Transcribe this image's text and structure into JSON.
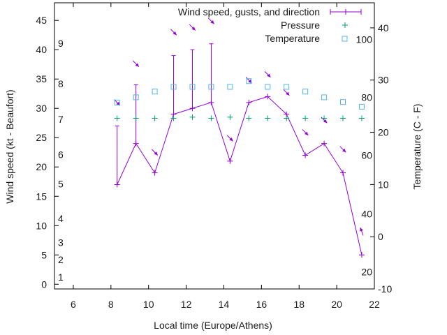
{
  "chart_data": {
    "type": "line",
    "title": "",
    "xlabel": "Local time (Europe/Athens)",
    "ylabel": "Wind speed (kt - Beaufort)",
    "y2label": "Temperature (C - F)",
    "xlim": [
      5,
      22
    ],
    "ylim": [
      -0.8,
      48
    ],
    "y2lim": [
      -10,
      44.8
    ],
    "grid": false,
    "legend_position": "top-right",
    "x_ticks": [
      "6",
      "8",
      "10",
      "12",
      "14",
      "16",
      "18",
      "20",
      "22"
    ],
    "y_ticks": [
      "0",
      "5",
      "10",
      "15",
      "20",
      "25",
      "30",
      "35",
      "40",
      "45"
    ],
    "y2_ticks": [
      "-10",
      "0",
      "10",
      "20",
      "30",
      "40"
    ],
    "beaufort_labels": [
      {
        "label": "1",
        "kt": 1.2
      },
      {
        "label": "2",
        "kt": 4.2
      },
      {
        "label": "3",
        "kt": 7.1
      },
      {
        "label": "4",
        "kt": 11.2
      },
      {
        "label": "5",
        "kt": 17.1
      },
      {
        "label": "6",
        "kt": 22.1
      },
      {
        "label": "7",
        "kt": 28.1
      },
      {
        "label": "8",
        "kt": 34.2
      },
      {
        "label": "9",
        "kt": 41.1
      }
    ],
    "fahrenheit_labels": [
      {
        "label": "100",
        "celsius": 37.8
      },
      {
        "label": "80",
        "celsius": 26.7
      },
      {
        "label": "60",
        "celsius": 15.6
      },
      {
        "label": "40",
        "celsius": 4.4
      },
      {
        "label": "20",
        "celsius": -6.7
      }
    ],
    "x": [
      8.33,
      9.33,
      10.33,
      11.33,
      12.33,
      13.33,
      14.33,
      15.33,
      16.33,
      17.33,
      18.33,
      19.33,
      20.33,
      21.33
    ],
    "series": [
      {
        "name": "Wind speed, gusts, and direction",
        "color": "#9400d3",
        "axis": "y",
        "values": [
          17,
          24,
          19,
          29,
          30,
          31,
          21,
          31,
          32,
          29,
          22,
          24,
          19,
          5
        ],
        "gusts": [
          27,
          34,
          19,
          39,
          40,
          41,
          21,
          31,
          32,
          29,
          22,
          24,
          19,
          5
        ],
        "direction_deg": [
          315,
          315,
          315,
          315,
          315,
          315,
          315,
          315,
          315,
          315,
          315,
          315,
          315,
          160
        ],
        "arrow_level": [
          31,
          37.6,
          22.5,
          43,
          43.8,
          44.9,
          24.9,
          34.8,
          35.8,
          32.7,
          25.9,
          28,
          23,
          9
        ]
      },
      {
        "name": "Pressure",
        "color": "#009e73",
        "axis": "y",
        "marker": "plus",
        "values": [
          28.3,
          28.3,
          28.3,
          28.3,
          28.5,
          28.3,
          28.5,
          28.3,
          28.3,
          28.3,
          28.3,
          28.3,
          28.3,
          28.3
        ]
      },
      {
        "name": "Temperature",
        "color": "#56b4e9",
        "axis": "y2",
        "marker": "square",
        "values": [
          25.7,
          26.7,
          27.8,
          28.7,
          28.7,
          28.7,
          28.7,
          29.8,
          28.7,
          28.7,
          27.8,
          26.7,
          25.8,
          24.9
        ]
      }
    ]
  }
}
